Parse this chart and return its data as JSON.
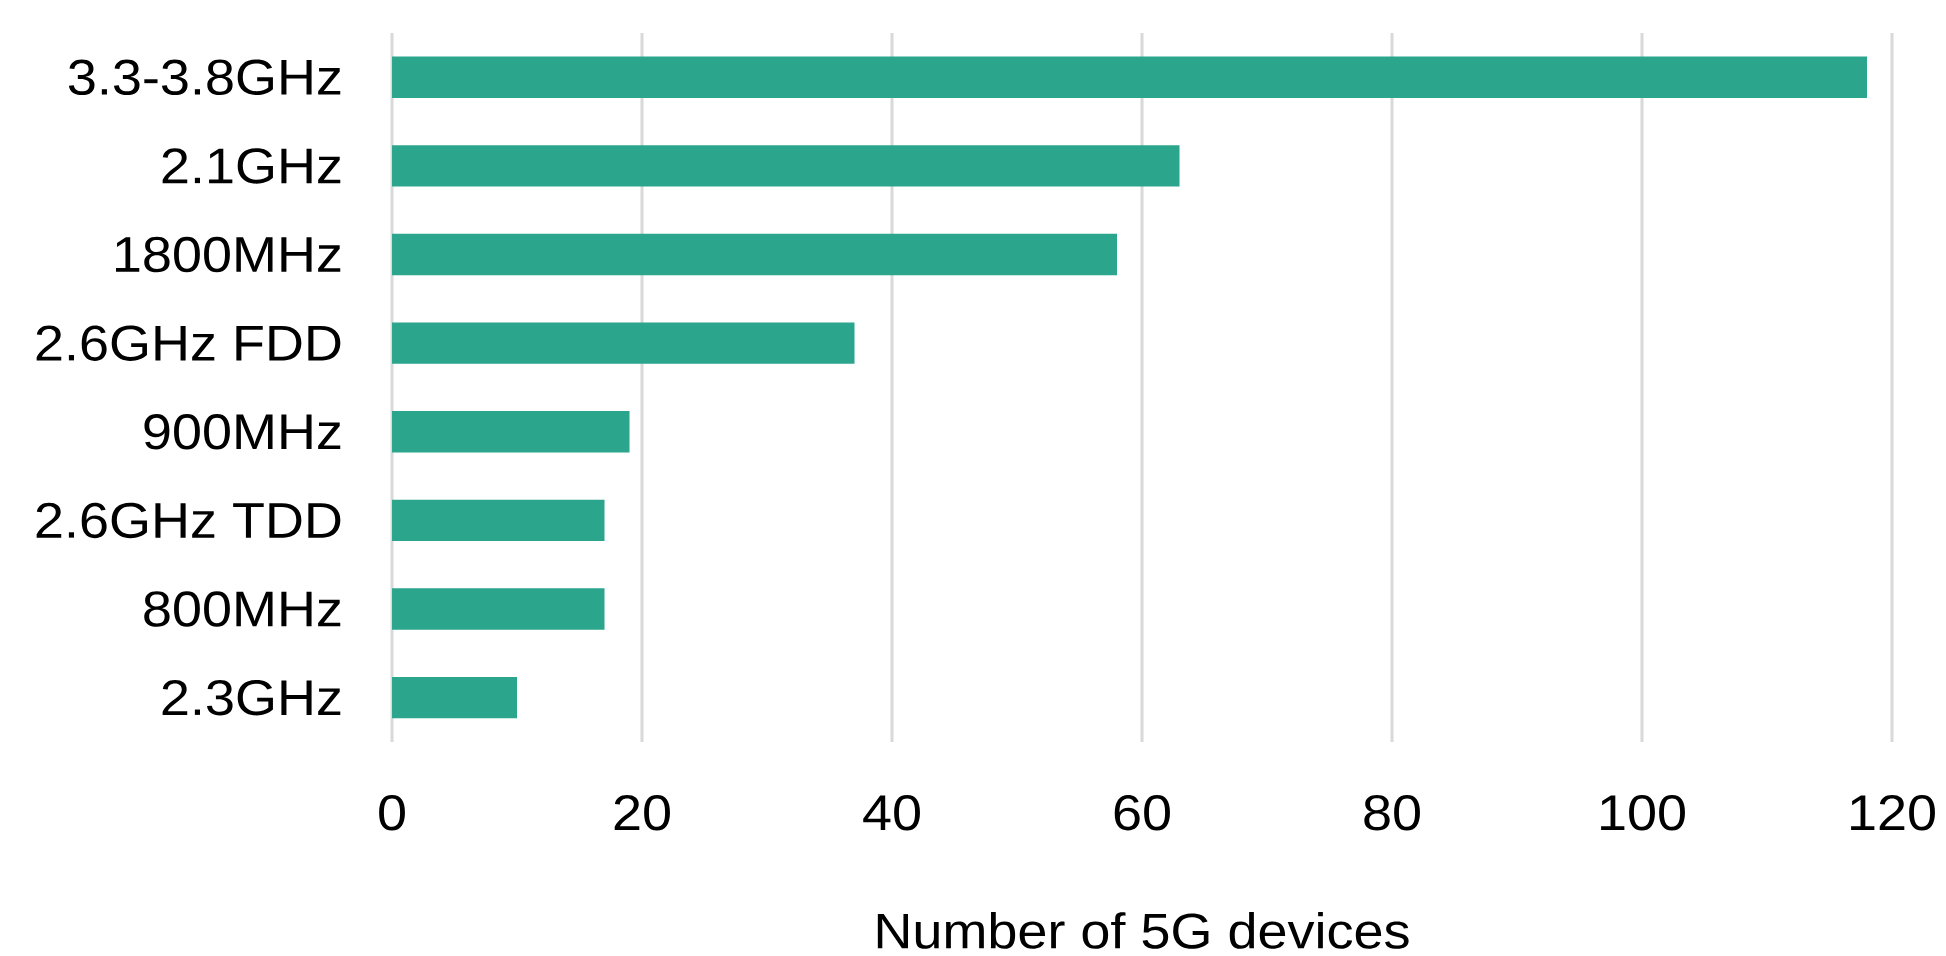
{
  "chart_data": {
    "type": "bar",
    "orientation": "horizontal",
    "categories": [
      "3.3-3.8GHz",
      "2.1GHz",
      "1800MHz",
      "2.6GHz FDD",
      "900MHz",
      "2.6GHz TDD",
      "800MHz",
      "2.3GHz"
    ],
    "values": [
      118,
      63,
      58,
      37,
      19,
      17,
      17,
      10
    ],
    "color": "#2ca58d",
    "xlabel": "Number of 5G devices",
    "xlim": [
      0,
      120
    ],
    "xticks": [
      0,
      20,
      40,
      60,
      80,
      100,
      120
    ],
    "grid": "x"
  }
}
